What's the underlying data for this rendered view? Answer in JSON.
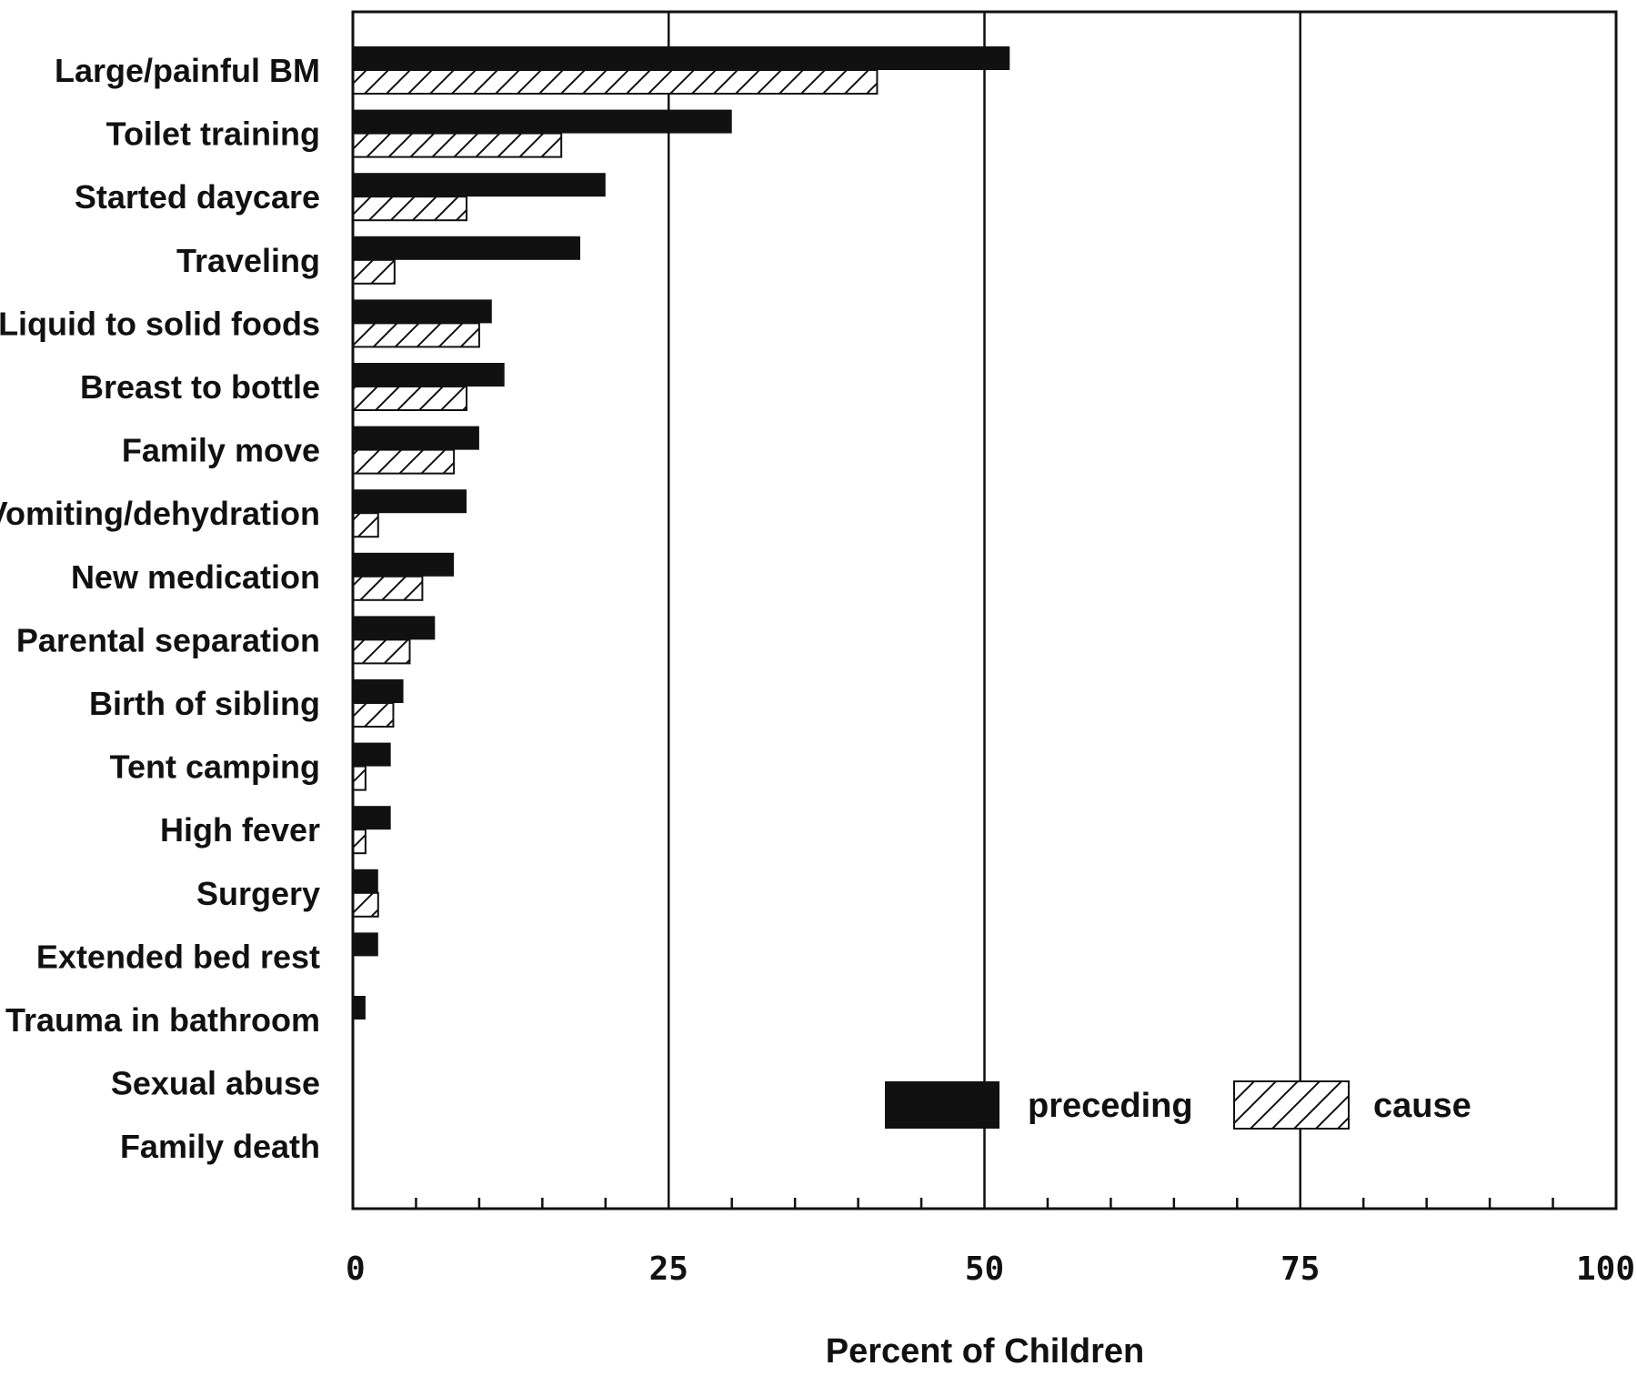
{
  "chart_data": {
    "type": "bar",
    "orientation": "horizontal",
    "categories": [
      "Large/painful BM",
      "Toilet training",
      "Started daycare",
      "Traveling",
      "Liquid to solid foods",
      "Breast to bottle",
      "Family move",
      "Vomiting/dehydration",
      "New medication",
      "Parental separation",
      "Birth of sibling",
      "Tent camping",
      "High fever",
      "Surgery",
      "Extended bed rest",
      "Trauma in bathroom",
      "Sexual abuse",
      "Family death"
    ],
    "series": [
      {
        "name": "preceding",
        "fill": "solid",
        "values": [
          52,
          30,
          20,
          18,
          11,
          12,
          10,
          9,
          8,
          6.5,
          4,
          3,
          3,
          2,
          2,
          1,
          0,
          0
        ]
      },
      {
        "name": "cause",
        "fill": "hatched",
        "values": [
          41.5,
          16.5,
          9,
          3.3,
          10,
          9,
          8,
          2,
          5.5,
          4.5,
          3.2,
          1,
          1,
          2,
          0,
          0,
          0,
          0
        ]
      }
    ],
    "xlabel": "Percent of Children",
    "xlim": [
      0,
      100
    ],
    "xticks": [
      "0",
      "25",
      "50",
      "75",
      "100"
    ],
    "minor_tick_step": 5,
    "grid": "vertical lines at major ticks",
    "legend_position": "bottom-right inside plot",
    "colors": {
      "bar": "#111111",
      "background": "#ffffff",
      "hatch": "#111111"
    }
  }
}
